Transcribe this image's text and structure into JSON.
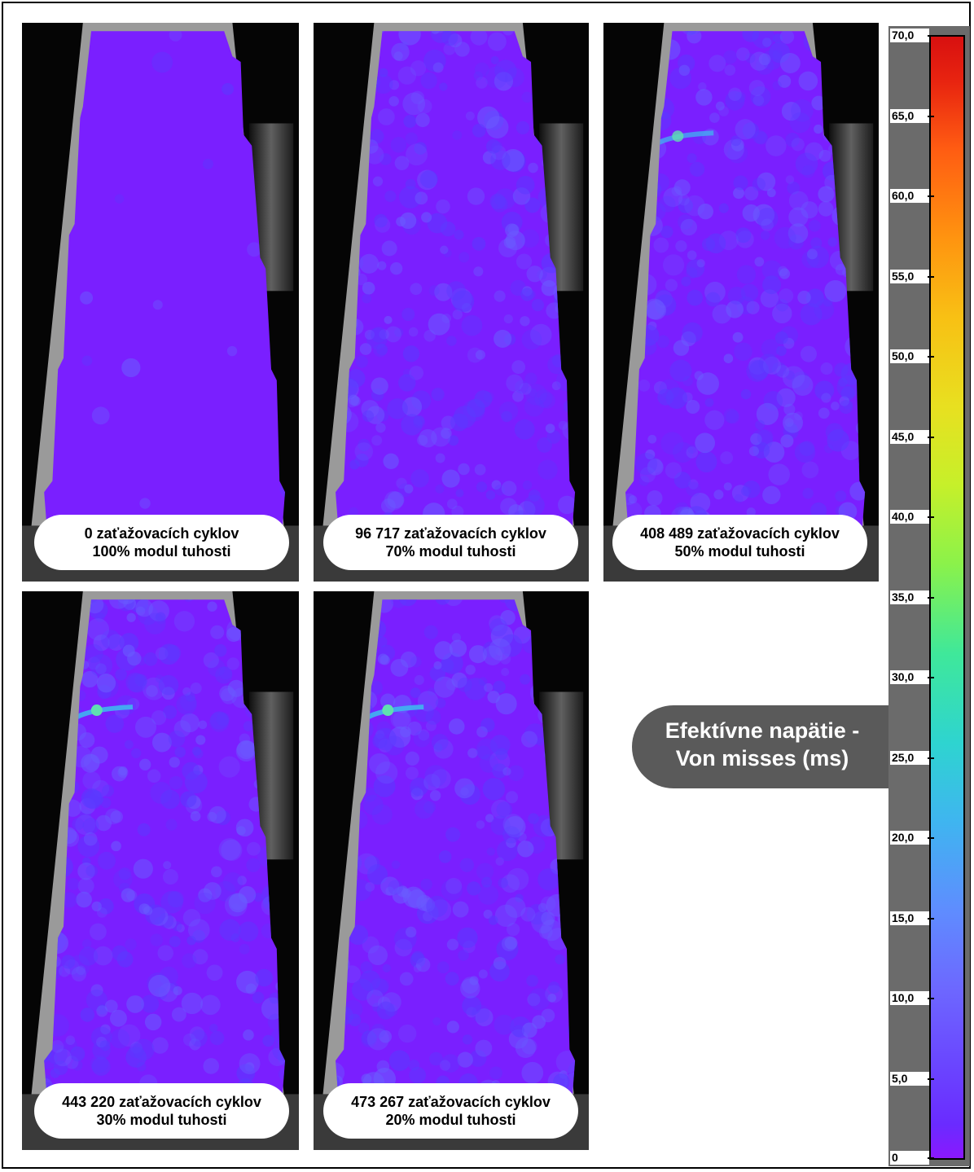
{
  "panels": [
    {
      "cycles_line": "0 zaťažovacích cyklov",
      "stiffness_line": "100% modul tuhosti",
      "noise": 0.05,
      "crack": 0
    },
    {
      "cycles_line": "96 717 zaťažovacích cyklov",
      "stiffness_line": "70% modul tuhosti",
      "noise": 1,
      "crack": 0
    },
    {
      "cycles_line": "408 489 zaťažovacích cyklov",
      "stiffness_line": "50% modul tuhosti",
      "noise": 1,
      "crack": 0.6
    },
    {
      "cycles_line": "443 220 zaťažovacích cyklov",
      "stiffness_line": "30% modul tuhosti",
      "noise": 1.1,
      "crack": 1
    },
    {
      "cycles_line": "473 267 zaťažovacích cyklov",
      "stiffness_line": "20% modul tuhosti",
      "noise": 1.1,
      "crack": 1
    }
  ],
  "colorbar": {
    "label_line1": "Efektívne napätie -",
    "label_line2": "Von misses (ms)",
    "ticks": [
      "70,0",
      "65,0",
      "60,0",
      "55,0",
      "50,0",
      "45,0",
      "40,0",
      "35,0",
      "30,0",
      "25,0",
      "20,0",
      "15,0",
      "10,0",
      "5,0",
      "0"
    ]
  },
  "colors": {
    "low": "#7a1fff",
    "mid": "#3fb5f0",
    "high": "#d81010"
  }
}
